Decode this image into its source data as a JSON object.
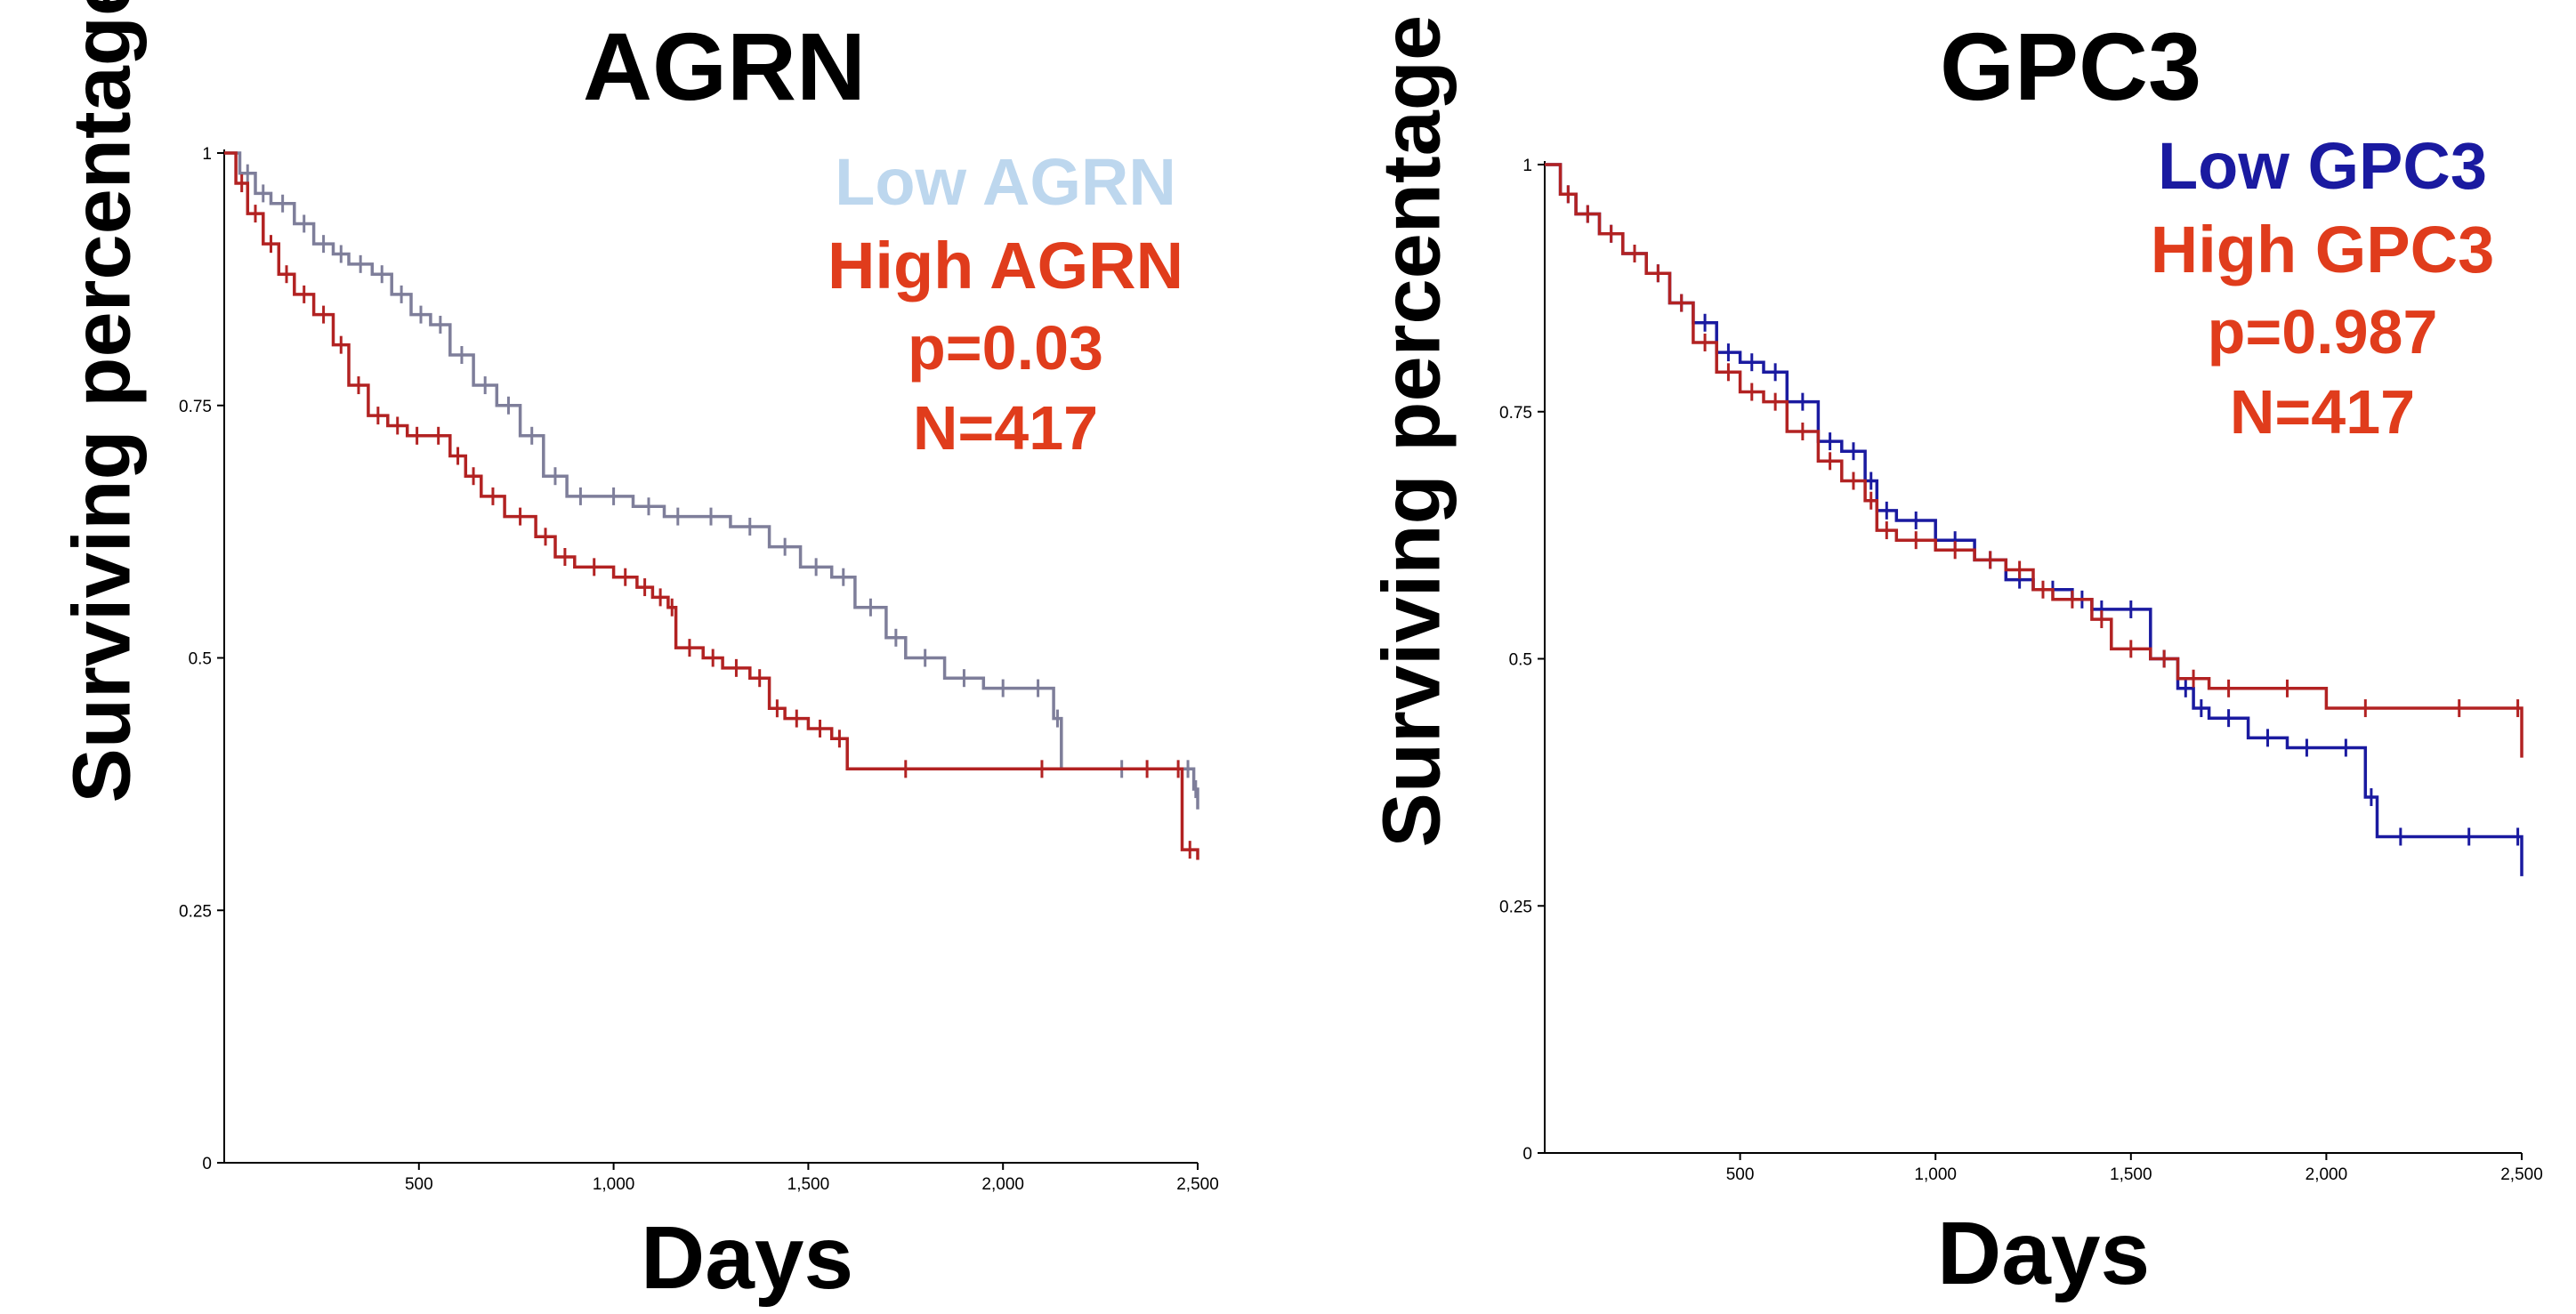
{
  "chart_data": [
    {
      "type": "line",
      "subtype": "kaplan-meier",
      "title": "AGRN",
      "xlabel": "Days",
      "ylabel": "Surviving percentage",
      "xlim": [
        0,
        2500
      ],
      "ylim": [
        0,
        1
      ],
      "xticks": [
        500,
        1000,
        1500,
        2000,
        2500
      ],
      "xtick_labels": [
        "500",
        "1,000",
        "1,500",
        "2,000",
        "2,500"
      ],
      "yticks": [
        0,
        0.25,
        0.5,
        0.75,
        1
      ],
      "ytick_labels": [
        "0",
        "0.25",
        "0.5",
        "0.75",
        "1"
      ],
      "legend_position": "top-right",
      "stats": {
        "p_label": "p=0.03",
        "n_label": "N=417"
      },
      "series": [
        {
          "name": "Low AGRN",
          "legend_color": "#bdd7ee",
          "line_color": "#7e7e9a",
          "x": [
            0,
            40,
            80,
            120,
            180,
            230,
            280,
            320,
            380,
            430,
            480,
            530,
            580,
            640,
            700,
            760,
            820,
            880,
            950,
            1050,
            1130,
            1200,
            1300,
            1400,
            1480,
            1560,
            1620,
            1700,
            1750,
            1850,
            1950,
            2050,
            2130,
            2150,
            2460,
            2490,
            2500
          ],
          "y": [
            1.0,
            0.98,
            0.96,
            0.95,
            0.93,
            0.91,
            0.9,
            0.89,
            0.88,
            0.86,
            0.84,
            0.83,
            0.8,
            0.77,
            0.75,
            0.72,
            0.68,
            0.66,
            0.66,
            0.65,
            0.64,
            0.64,
            0.63,
            0.61,
            0.59,
            0.58,
            0.55,
            0.52,
            0.5,
            0.48,
            0.47,
            0.47,
            0.44,
            0.39,
            0.39,
            0.37,
            0.35
          ]
        },
        {
          "name": "High AGRN",
          "legend_color": "#e03c1c",
          "line_color": "#b22222",
          "x": [
            0,
            30,
            60,
            100,
            140,
            180,
            230,
            280,
            320,
            370,
            420,
            470,
            520,
            580,
            620,
            660,
            720,
            800,
            850,
            900,
            1000,
            1060,
            1100,
            1140,
            1160,
            1230,
            1280,
            1350,
            1400,
            1440,
            1500,
            1560,
            1600,
            1900,
            2300,
            2440,
            2460,
            2500
          ],
          "y": [
            1.0,
            0.97,
            0.94,
            0.91,
            0.88,
            0.86,
            0.84,
            0.81,
            0.77,
            0.74,
            0.73,
            0.72,
            0.72,
            0.7,
            0.68,
            0.66,
            0.64,
            0.62,
            0.6,
            0.59,
            0.58,
            0.57,
            0.56,
            0.55,
            0.51,
            0.5,
            0.49,
            0.48,
            0.45,
            0.44,
            0.43,
            0.42,
            0.39,
            0.39,
            0.39,
            0.39,
            0.31,
            0.3
          ]
        }
      ]
    },
    {
      "type": "line",
      "subtype": "kaplan-meier",
      "title": "GPC3",
      "xlabel": "Days",
      "ylabel": "Surviving percentage",
      "xlim": [
        0,
        2500
      ],
      "ylim": [
        0,
        1
      ],
      "xticks": [
        500,
        1000,
        1500,
        2000,
        2500
      ],
      "xtick_labels": [
        "500",
        "1,000",
        "1,500",
        "2,000",
        "2,500"
      ],
      "yticks": [
        0,
        0.25,
        0.5,
        0.75,
        1
      ],
      "ytick_labels": [
        "0",
        "0.25",
        "0.5",
        "0.75",
        "1"
      ],
      "legend_position": "top-right",
      "stats": {
        "p_label": "p=0.987",
        "n_label": "N=417"
      },
      "series": [
        {
          "name": "Low GPC3",
          "legend_color": "#1a1aa0",
          "line_color": "#1a1aa0",
          "x": [
            0,
            40,
            80,
            140,
            200,
            260,
            320,
            380,
            440,
            500,
            560,
            620,
            700,
            760,
            820,
            850,
            900,
            1000,
            1100,
            1180,
            1250,
            1350,
            1400,
            1450,
            1550,
            1620,
            1660,
            1700,
            1800,
            1900,
            2000,
            2100,
            2130,
            2250,
            2480,
            2500
          ],
          "y": [
            1.0,
            0.97,
            0.95,
            0.93,
            0.91,
            0.89,
            0.86,
            0.84,
            0.81,
            0.8,
            0.79,
            0.76,
            0.72,
            0.71,
            0.68,
            0.65,
            0.64,
            0.62,
            0.6,
            0.58,
            0.57,
            0.56,
            0.55,
            0.55,
            0.5,
            0.47,
            0.45,
            0.44,
            0.42,
            0.41,
            0.41,
            0.36,
            0.32,
            0.32,
            0.32,
            0.28
          ]
        },
        {
          "name": "High GPC3",
          "legend_color": "#e03c1c",
          "line_color": "#b22222",
          "x": [
            0,
            40,
            80,
            140,
            200,
            260,
            320,
            380,
            440,
            500,
            560,
            620,
            700,
            760,
            820,
            850,
            900,
            1000,
            1100,
            1180,
            1250,
            1300,
            1400,
            1450,
            1550,
            1620,
            1700,
            1800,
            2000,
            2200,
            2480,
            2500
          ],
          "y": [
            1.0,
            0.97,
            0.95,
            0.93,
            0.91,
            0.89,
            0.86,
            0.82,
            0.79,
            0.77,
            0.76,
            0.73,
            0.7,
            0.68,
            0.66,
            0.63,
            0.62,
            0.61,
            0.6,
            0.59,
            0.57,
            0.56,
            0.54,
            0.51,
            0.5,
            0.48,
            0.47,
            0.47,
            0.45,
            0.45,
            0.45,
            0.4
          ]
        }
      ]
    }
  ]
}
